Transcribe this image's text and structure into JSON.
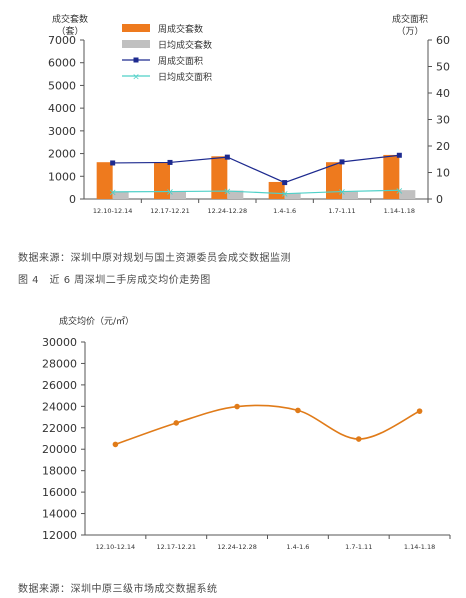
{
  "chart_data": [
    {
      "type": "bar+line",
      "title": "",
      "categories": [
        "12.10-12.14",
        "12.17-12.21",
        "12.24-12.28",
        "1.4-1.6",
        "1.7-1.11",
        "1.14-1.18"
      ],
      "left_axis": {
        "label_line1": "成交套数",
        "label_line2": "（套）",
        "ylim": [
          0,
          7000
        ],
        "ticks": [
          0,
          1000,
          2000,
          3000,
          4000,
          5000,
          6000,
          7000
        ]
      },
      "right_axis": {
        "label_line1": "成交面积",
        "label_line2": "（万）",
        "ylim": [
          0,
          60
        ],
        "ticks": [
          0,
          10,
          20,
          30,
          40,
          50,
          60
        ]
      },
      "series": [
        {
          "name": "周成交套数",
          "kind": "bar",
          "axis": "left",
          "color": "#ee7a1e",
          "values": [
            1620,
            1620,
            1880,
            750,
            1620,
            1940
          ]
        },
        {
          "name": "日均成交套数",
          "kind": "bar",
          "axis": "left",
          "color": "#c0c0c0",
          "values": [
            320,
            320,
            370,
            250,
            320,
            390
          ]
        },
        {
          "name": "周成交面积",
          "kind": "line",
          "axis": "right",
          "color": "#1d2a8f",
          "marker": "square",
          "values": [
            13.6,
            13.8,
            15.8,
            6.2,
            14.0,
            16.5
          ]
        },
        {
          "name": "日均成交面积",
          "kind": "line",
          "axis": "right",
          "color": "#4fd0c8",
          "marker": "x",
          "values": [
            2.7,
            2.8,
            3.0,
            2.0,
            2.8,
            3.3
          ]
        }
      ],
      "legend_position": "top-center",
      "grid": false
    },
    {
      "type": "line",
      "title": "",
      "categories": [
        "12.10-12.14",
        "12.17-12.21",
        "12.24-12.28",
        "1.4-1.6",
        "1.7-1.11",
        "1.14-1.18"
      ],
      "ylabel": "成交均价（元/㎡）",
      "ylim": [
        12000,
        30000
      ],
      "ticks": [
        12000,
        14000,
        16000,
        18000,
        20000,
        22000,
        24000,
        26000,
        28000,
        30000
      ],
      "series": [
        {
          "name": "",
          "color": "#e07b19",
          "marker": "circle",
          "smooth": true,
          "values": [
            20450,
            22450,
            23980,
            23620,
            20950,
            23550
          ]
        }
      ],
      "grid": false
    }
  ],
  "captions": {
    "source_1": "数据来源：深圳中原对规划与国土资源委员会成交数据监测",
    "figure_4": "图 4　近 6 周深圳二手房成交均价走势图",
    "source_2": "数据来源：深圳中原三级市场成交数据系统"
  }
}
